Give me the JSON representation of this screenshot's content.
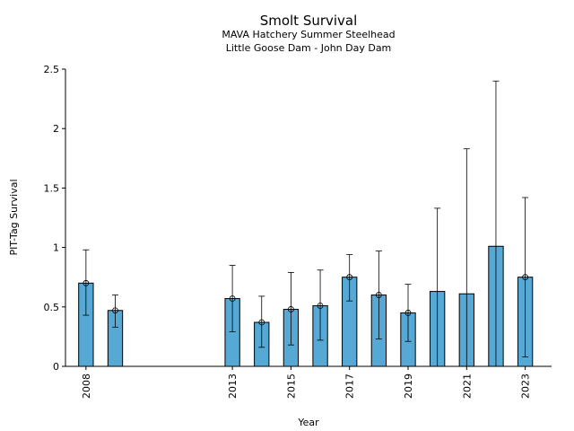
{
  "chart_data": {
    "type": "bar",
    "title": "Smolt Survival",
    "subtitle": [
      "MAVA Hatchery Summer Steelhead",
      "Little Goose Dam - John Day Dam"
    ],
    "xlabel": "Year",
    "ylabel": "PIT-Tag Survival",
    "ylim": [
      0,
      2.5
    ],
    "xlim": [
      2007.3,
      2023.9
    ],
    "yticks": [
      0,
      0.5,
      1,
      1.5,
      2,
      2.5
    ],
    "ytick_labels": [
      "0",
      "0.5",
      "1",
      "1.5",
      "2",
      "2.5"
    ],
    "xticks": [
      2008,
      2013,
      2015,
      2017,
      2019,
      2021,
      2023
    ],
    "xtick_labels": [
      "2008",
      "2013",
      "2015",
      "2017",
      "2019",
      "2021",
      "2023"
    ],
    "grid": false,
    "bars": [
      {
        "x": 2008,
        "value": 0.7,
        "lower": 0.43,
        "upper": 0.98,
        "marker": true
      },
      {
        "x": 2009,
        "value": 0.47,
        "lower": 0.33,
        "upper": 0.6,
        "marker": true
      },
      {
        "x": 2013,
        "value": 0.57,
        "lower": 0.29,
        "upper": 0.85,
        "marker": true
      },
      {
        "x": 2014,
        "value": 0.37,
        "lower": 0.16,
        "upper": 0.59,
        "marker": true
      },
      {
        "x": 2015,
        "value": 0.48,
        "lower": 0.18,
        "upper": 0.79,
        "marker": true
      },
      {
        "x": 2016,
        "value": 0.51,
        "lower": 0.22,
        "upper": 0.81,
        "marker": true
      },
      {
        "x": 2017,
        "value": 0.75,
        "lower": 0.55,
        "upper": 0.94,
        "marker": true
      },
      {
        "x": 2018,
        "value": 0.6,
        "lower": 0.23,
        "upper": 0.97,
        "marker": true
      },
      {
        "x": 2019,
        "value": 0.45,
        "lower": 0.21,
        "upper": 0.69,
        "marker": true
      },
      {
        "x": 2020,
        "value": 0.63,
        "lower": null,
        "upper": 1.33,
        "marker": false
      },
      {
        "x": 2021,
        "value": 0.61,
        "lower": null,
        "upper": 1.83,
        "marker": false
      },
      {
        "x": 2022,
        "value": 1.01,
        "lower": null,
        "upper": 2.4,
        "marker": false
      },
      {
        "x": 2023,
        "value": 0.75,
        "lower": 0.08,
        "upper": 1.42,
        "marker": true
      }
    ],
    "colors": {
      "bar": "#56a9d4",
      "edge": "#000000"
    }
  }
}
